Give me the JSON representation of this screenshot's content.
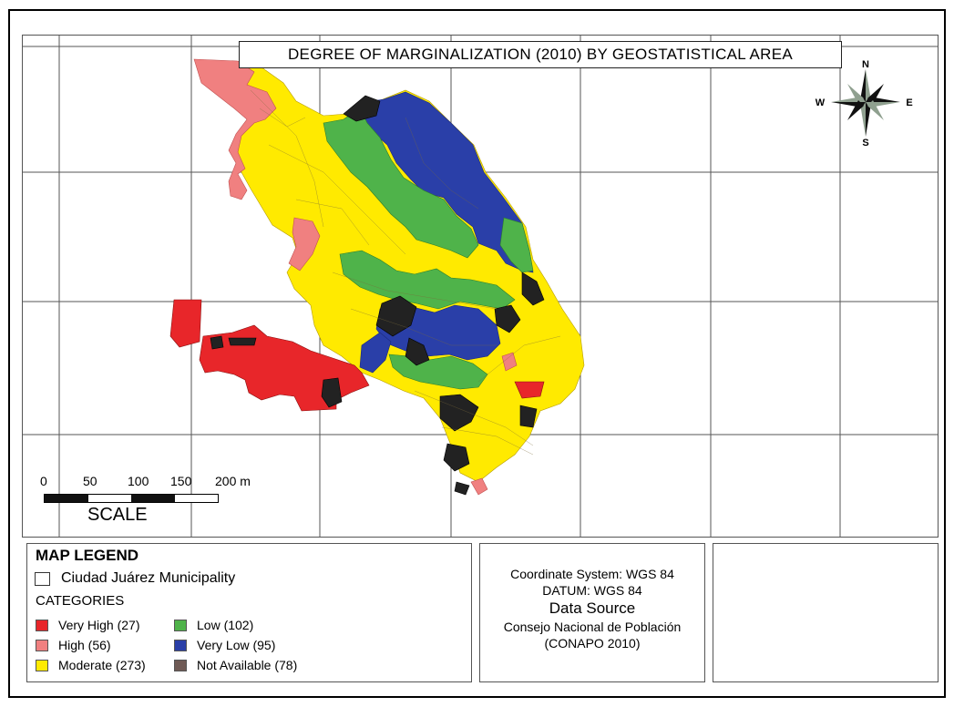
{
  "map": {
    "title": "DEGREE OF MARGINALIZATION (2010) BY GEOSTATISTICAL AREA",
    "compass": {
      "n": "N",
      "s": "S",
      "e": "E",
      "w": "W"
    },
    "scale": {
      "ticks": [
        "0",
        "50",
        "100",
        "150",
        "200 m"
      ],
      "caption": "SCALE"
    },
    "colors": {
      "very_high": "#e8262a",
      "high": "#f08080",
      "moderate": "#ffea00",
      "low": "#4fb34a",
      "very_low": "#2a3fa8",
      "not_available": "#222222",
      "grid": "#555555"
    }
  },
  "legend": {
    "title": "MAP LEGEND",
    "municipality": "Ciudad Juárez Municipality",
    "categories_title": "CATEGORIES",
    "categories": [
      {
        "label": "Very High (27)",
        "color": "#e8262a"
      },
      {
        "label": "High (56)",
        "color": "#f08080"
      },
      {
        "label": "Moderate (273)",
        "color": "#ffea00"
      },
      {
        "label": "Low (102)",
        "color": "#4fb34a"
      },
      {
        "label": "Very Low (95)",
        "color": "#2a3fa8"
      },
      {
        "label": "Not Available (78)",
        "color": "#6f5a55"
      }
    ]
  },
  "info": {
    "coordinate_system": "Coordinate System: WGS 84",
    "datum": "DATUM: WGS 84",
    "data_source_title": "Data Source",
    "source_line1": "Consejo Nacional de Población",
    "source_line2": "(CONAPO 2010)"
  }
}
